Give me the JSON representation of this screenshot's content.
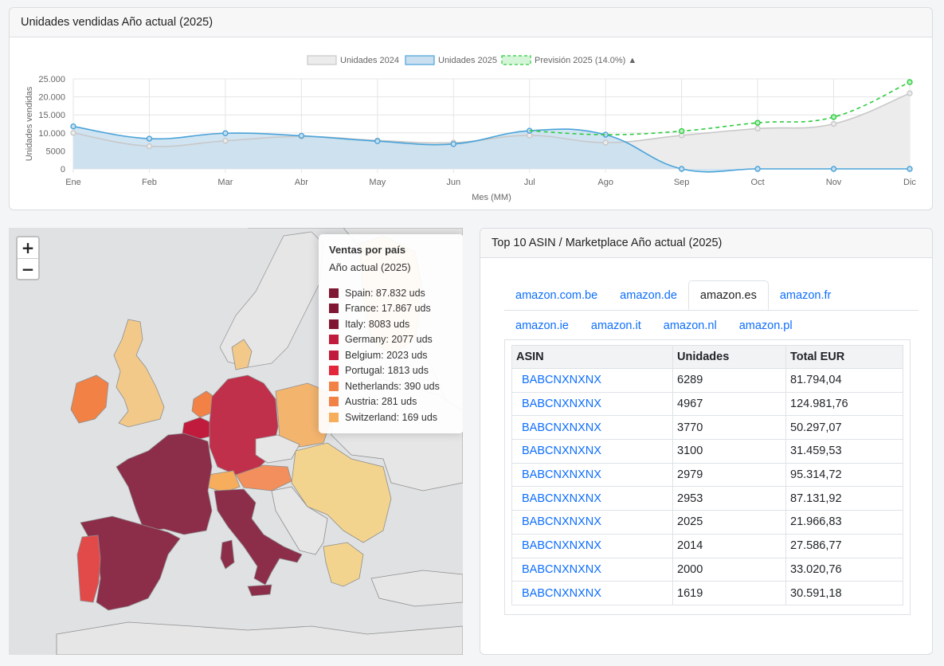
{
  "chart_card": {
    "title": "Unidades vendidas Año actual (2025)"
  },
  "chart_data": {
    "type": "line",
    "categories": [
      "Ene",
      "Feb",
      "Mar",
      "Abr",
      "May",
      "Jun",
      "Jul",
      "Ago",
      "Sep",
      "Oct",
      "Nov",
      "Dic"
    ],
    "xlabel": "Mes (MM)",
    "ylabel": "Unidades vendidas",
    "ylim": [
      0,
      25000
    ],
    "yticks": [
      0,
      5000,
      10000,
      15000,
      20000,
      25000
    ],
    "ytick_labels": [
      "0",
      "5000",
      "10.000",
      "15.000",
      "20.000",
      "25.000"
    ],
    "legend_position": "top",
    "grid": true,
    "series": [
      {
        "name": "Unidades 2024",
        "values": [
          10000,
          6300,
          7800,
          9000,
          7900,
          7300,
          9300,
          7300,
          9300,
          11200,
          12500,
          21000
        ],
        "color": "#c8c8c8",
        "fill": "#ececec"
      },
      {
        "name": "Unidades 2025",
        "values": [
          11800,
          8400,
          9900,
          9200,
          7700,
          6900,
          10600,
          9500,
          0,
          0,
          0,
          0
        ],
        "color": "#4aa3d8",
        "fill": "#c9dff0"
      },
      {
        "name": "Previsión 2025 (14.0%) ▲",
        "values": [
          null,
          null,
          null,
          null,
          null,
          null,
          10600,
          9500,
          10500,
          12800,
          14400,
          24100
        ],
        "color": "#2ecc40",
        "dashed": true
      }
    ]
  },
  "map": {
    "zoom_in": "+",
    "zoom_out": "−",
    "legend": {
      "title": "Ventas por país",
      "subtitle": "Año actual (2025)",
      "items": [
        {
          "label": "Spain: 87.832 uds",
          "color": "#7f1734"
        },
        {
          "label": "France: 17.867 uds",
          "color": "#7f1734"
        },
        {
          "label": "Italy: 8083 uds",
          "color": "#7f1734"
        },
        {
          "label": "Germany: 2077 uds",
          "color": "#c01a3c"
        },
        {
          "label": "Belgium: 2023 uds",
          "color": "#c01a3c"
        },
        {
          "label": "Portugal: 1813 uds",
          "color": "#e3263a"
        },
        {
          "label": "Netherlands: 390 uds",
          "color": "#f28145"
        },
        {
          "label": "Austria: 281 uds",
          "color": "#f28145"
        },
        {
          "label": "Switzerland: 169 uds",
          "color": "#f7ae5c"
        }
      ]
    }
  },
  "table_card": {
    "title": "Top 10 ASIN / Marketplace Año actual (2025)",
    "tabs_row1": [
      "amazon.com.be",
      "amazon.de",
      "amazon.es",
      "amazon.fr"
    ],
    "tabs_row2": [
      "amazon.ie",
      "amazon.it",
      "amazon.nl",
      "amazon.pl"
    ],
    "active_tab": "amazon.es",
    "columns": [
      "ASIN",
      "Unidades",
      "Total EUR"
    ],
    "rows": [
      {
        "asin": "BABCNXNXNX",
        "units": "6289",
        "total": "81.794,04"
      },
      {
        "asin": "BABCNXNXNX",
        "units": "4967",
        "total": "124.981,76"
      },
      {
        "asin": "BABCNXNXNX",
        "units": "3770",
        "total": "50.297,07"
      },
      {
        "asin": "BABCNXNXNX",
        "units": "3100",
        "total": "31.459,53"
      },
      {
        "asin": "BABCNXNXNX",
        "units": "2979",
        "total": "95.314,72"
      },
      {
        "asin": "BABCNXNXNX",
        "units": "2953",
        "total": "87.131,92"
      },
      {
        "asin": "BABCNXNXNX",
        "units": "2025",
        "total": "21.966,83"
      },
      {
        "asin": "BABCNXNXNX",
        "units": "2014",
        "total": "27.586,77"
      },
      {
        "asin": "BABCNXNXNX",
        "units": "2000",
        "total": "33.020,76"
      },
      {
        "asin": "BABCNXNXNX",
        "units": "1619",
        "total": "30.591,18"
      }
    ]
  }
}
